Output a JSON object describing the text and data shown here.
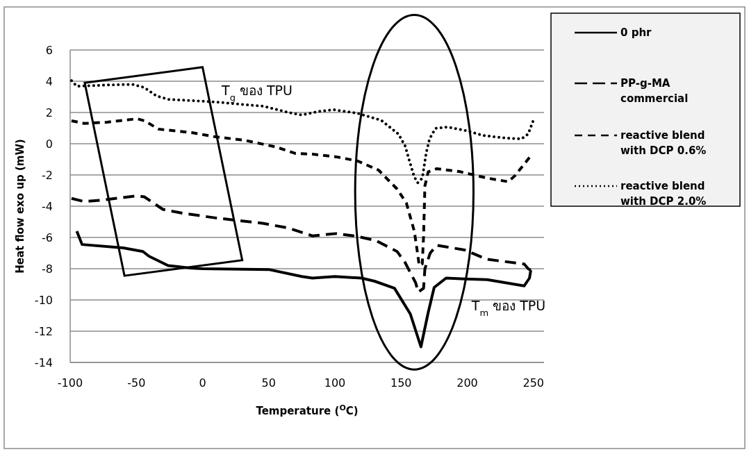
{
  "chart_data": {
    "type": "line",
    "xlabel": "Temperature ($^{O}$C)",
    "ylabel": "Heat flow exo up (mW)",
    "xlim": [
      -100,
      258
    ],
    "xticks": [
      -100,
      -50,
      0,
      50,
      100,
      150,
      200,
      250
    ],
    "ylim": [
      -14,
      6
    ],
    "yticks": [
      -14,
      -12,
      -10,
      -8,
      -6,
      -4,
      -2,
      0,
      2,
      4,
      6
    ],
    "grid": "y",
    "legend": "right",
    "marker": "none",
    "annotations": [
      "T$_{g}$ ของ TPU",
      "T$_{m}$ ของ TPU"
    ],
    "series": [
      {
        "name": "0 phr",
        "color": "#000000",
        "line_style": "solid",
        "x": [
          -95,
          -91,
          -60,
          -45,
          -40.5,
          -26,
          -10,
          0,
          50,
          75,
          83,
          100,
          120,
          130,
          145,
          157,
          165,
          170.5,
          175,
          184,
          198,
          215,
          243,
          247,
          248
        ],
        "values": [
          -5.6,
          -6.45,
          -6.67,
          -6.9,
          -7.2,
          -7.8,
          -7.95,
          -8,
          -8.05,
          -8.5,
          -8.6,
          -8.5,
          -8.6,
          -8.8,
          -9.25,
          -10.9,
          -13,
          -10.8,
          -9.2,
          -8.6,
          -8.65,
          -8.7,
          -9.1,
          -8.6,
          -8.1
        ]
      },
      {
        "name": "PP-g-MA commercial",
        "color": "#000000",
        "line_style": "longdash",
        "x": [
          -99,
          -89.5,
          -75,
          -49.5,
          -44,
          -30,
          -15,
          10,
          46,
          65,
          83,
          101,
          115,
          131,
          147,
          153,
          161,
          163,
          167,
          168,
          172,
          177,
          184,
          198,
          215,
          229,
          243,
          246,
          248
        ],
        "values": [
          -3.5,
          -3.7,
          -3.6,
          -3.33,
          -3.4,
          -4.2,
          -4.45,
          -4.75,
          -5.1,
          -5.4,
          -5.9,
          -5.75,
          -5.9,
          -6.2,
          -6.9,
          -7.6,
          -8.9,
          -9.5,
          -9.25,
          -8,
          -7,
          -6.5,
          -6.6,
          -6.8,
          -7.4,
          -7.55,
          -7.7,
          -8,
          -8.1
        ]
      },
      {
        "name": "reactive blend with DCP 0.6%",
        "color": "#000000",
        "line_style": "dashed",
        "x": [
          -99,
          -89.5,
          -72,
          -49.5,
          -44,
          -33,
          -8,
          10,
          32,
          56,
          70,
          83,
          101,
          117,
          133,
          147,
          154,
          156,
          160,
          162.6,
          163.7,
          166,
          167,
          168,
          170.5,
          177,
          194,
          215,
          231,
          236,
          247
        ],
        "values": [
          1.47,
          1.3,
          1.38,
          1.6,
          1.47,
          0.93,
          0.71,
          0.44,
          0.22,
          -0.22,
          -0.62,
          -0.67,
          -0.84,
          -1.1,
          -1.69,
          -2.9,
          -3.8,
          -4.4,
          -5.6,
          -7.1,
          -7.8,
          -7.7,
          -5.9,
          -2.7,
          -1.8,
          -1.6,
          -1.78,
          -2.2,
          -2.43,
          -2.05,
          -0.88
        ]
      },
      {
        "name": "reactive blend with DCP 2.0%",
        "color": "#000000",
        "line_style": "dotted",
        "x": [
          -99,
          -95,
          -72,
          -53,
          -44,
          -35,
          -26,
          -8,
          10,
          28,
          46,
          65,
          75,
          88,
          99,
          117,
          135,
          148,
          153,
          156,
          160,
          162.6,
          166,
          169,
          171.5,
          176,
          185,
          199,
          212,
          229,
          241,
          246,
          249.6
        ],
        "values": [
          4.04,
          3.68,
          3.76,
          3.8,
          3.6,
          3.07,
          2.84,
          2.76,
          2.67,
          2.53,
          2.4,
          2.0,
          1.84,
          2.07,
          2.18,
          1.95,
          1.5,
          0.62,
          -0.13,
          -1.02,
          -2.13,
          -2.5,
          -2.2,
          -0.58,
          0.31,
          0.98,
          1.07,
          0.84,
          0.53,
          0.36,
          0.31,
          0.62,
          1.42
        ]
      }
    ]
  }
}
